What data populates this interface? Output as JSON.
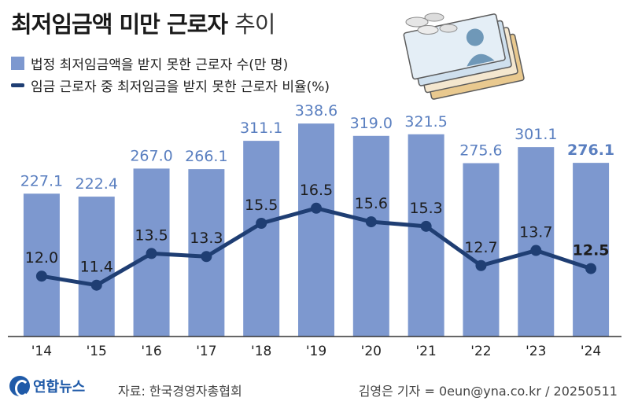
{
  "title": {
    "main": "최저임금액 미만 근로자",
    "sub": "추이"
  },
  "legend": [
    {
      "label": "법정 최저임금액을 받지 못한 근로자 수(만 명)",
      "color": "#7d98cf"
    },
    {
      "label": "임금 근로자 중 최저임금을 받지 못한 근로자 비율(%)",
      "color": "#1f3e73"
    }
  ],
  "chart_data": {
    "type": "bar",
    "categories": [
      "'14",
      "'15",
      "'16",
      "'17",
      "'18",
      "'19",
      "'20",
      "'21",
      "'22",
      "'23",
      "'24"
    ],
    "series": [
      {
        "name": "법정 최저임금액을 받지 못한 근로자 수(만 명)",
        "type": "bar",
        "values": [
          227.1,
          222.4,
          267.0,
          266.1,
          311.1,
          338.6,
          319.0,
          321.5,
          275.6,
          301.1,
          276.1
        ],
        "labels": [
          "227.1",
          "222.4",
          "267.0",
          "266.1",
          "311.1",
          "338.6",
          "319.0",
          "321.5",
          "275.6",
          "301.1",
          "276.1"
        ],
        "color": "#7d98cf"
      },
      {
        "name": "임금 근로자 중 최저임금을 받지 못한 근로자 비율(%)",
        "type": "line",
        "values": [
          12.0,
          11.4,
          13.5,
          13.3,
          15.5,
          16.5,
          15.6,
          15.3,
          12.7,
          13.7,
          12.5
        ],
        "labels": [
          "12.0",
          "11.4",
          "13.5",
          "13.3",
          "15.5",
          "16.5",
          "15.6",
          "15.3",
          "12.7",
          "13.7",
          "12.5"
        ],
        "color": "#1f3e73"
      }
    ],
    "bar_ylim": [
      0,
      360
    ],
    "line_ylim": [
      8,
      23
    ],
    "highlight_last": true,
    "grid": false
  },
  "footer": {
    "logo": "연합뉴스",
    "source": "자료: 한국경영자총협회",
    "credit": "김영은 기자 = 0eun@yna.co.kr / 20250511"
  }
}
